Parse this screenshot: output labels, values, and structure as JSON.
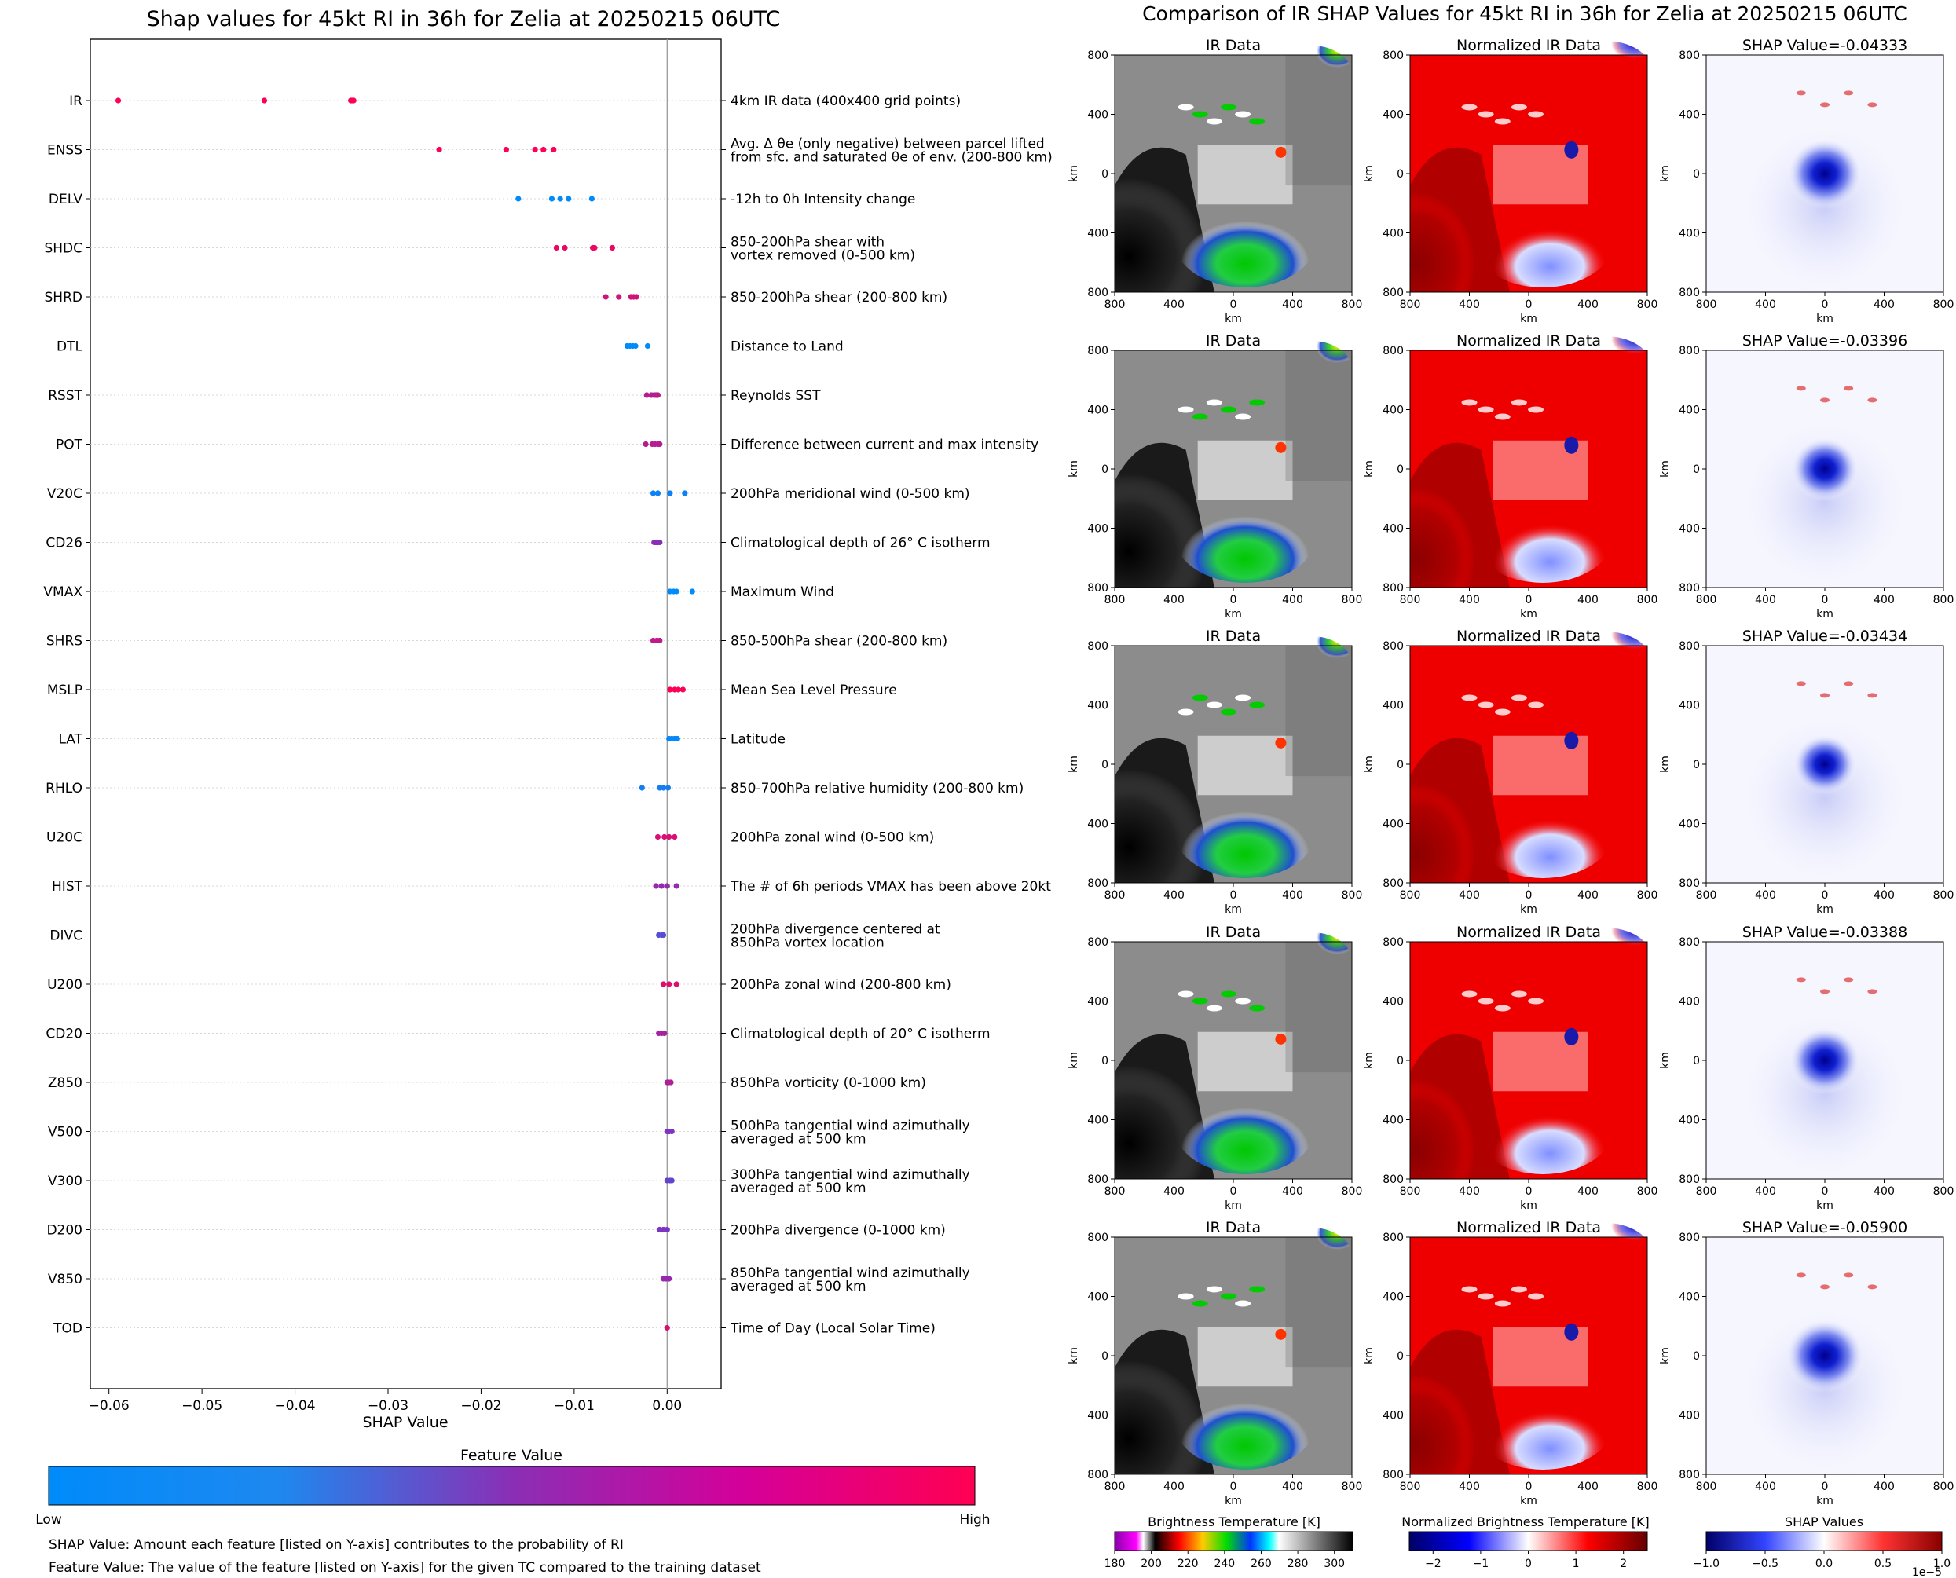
{
  "left_title": "Shap values for 45kt RI in 36h for Zelia at 20250215 06UTC",
  "right_title": "Comparison of IR SHAP Values for 45kt RI in 36h for Zelia at 20250215 06UTC",
  "feature_value_label": "Feature Value",
  "colorbar_low": "Low",
  "colorbar_high": "High",
  "colors": {
    "low": "#008bfb",
    "mid": "#7c34c2",
    "high": "#ff0052",
    "vertical_line": "#999999"
  },
  "footnotes": [
    "SHAP Value: Amount each feature [listed on Y-axis] contributes to the probability of RI",
    "Feature Value: The value of the feature [listed on Y-axis] for the given TC compared to the training dataset"
  ],
  "chart_data": [
    {
      "type": "scatter",
      "chart": "shap-beeswarm",
      "title": "Shap values for 45kt RI in 36h for Zelia at 20250215 06UTC",
      "xlabel": "SHAP Value",
      "xlim": [
        -0.062,
        0.0058
      ],
      "xticks": [
        -0.06,
        -0.05,
        -0.04,
        -0.03,
        -0.02,
        -0.01,
        0.0
      ],
      "xtick_labels": [
        "−0.06",
        "−0.05",
        "−0.04",
        "−0.03",
        "−0.02",
        "−0.01",
        "0.00"
      ],
      "features": [
        {
          "code": "IR",
          "desc": [
            "4km IR data (400x400 grid points)"
          ],
          "color_value": 1.0,
          "points": [
            -0.059,
            -0.0433,
            -0.034,
            -0.0339,
            -0.0338,
            -0.0337
          ]
        },
        {
          "code": "ENSS",
          "desc": [
            "Avg. Δ θe (only negative) between parcel lifted",
            "from sfc. and saturated θe of env. (200-800 km)"
          ],
          "color_value": 1.0,
          "points": [
            -0.0245,
            -0.0173,
            -0.0142,
            -0.0133,
            -0.0122
          ]
        },
        {
          "code": "DELV",
          "desc": [
            "-12h to 0h Intensity change"
          ],
          "color_value": 0.0,
          "points": [
            -0.016,
            -0.0124,
            -0.0115,
            -0.0106,
            -0.0081
          ]
        },
        {
          "code": "SHDC",
          "desc": [
            "850-200hPa shear with",
            "vortex removed (0-500 km)"
          ],
          "color_value": 0.92,
          "points": [
            -0.0119,
            -0.011,
            -0.008,
            -0.0078,
            -0.0059
          ]
        },
        {
          "code": "SHRD",
          "desc": [
            "850-200hPa shear (200-800 km)"
          ],
          "color_value": 0.82,
          "points": [
            -0.0066,
            -0.0052,
            -0.0039,
            -0.0036,
            -0.0033
          ]
        },
        {
          "code": "DTL",
          "desc": [
            "Distance to Land"
          ],
          "color_value": 0.0,
          "points": [
            -0.0043,
            -0.004,
            -0.0037,
            -0.0034,
            -0.0021
          ]
        },
        {
          "code": "RSST",
          "desc": [
            "Reynolds SST"
          ],
          "color_value": 0.72,
          "points": [
            -0.0022,
            -0.0017,
            -0.0014,
            -0.0012,
            -0.001
          ]
        },
        {
          "code": "POT",
          "desc": [
            "Difference between current and max intensity"
          ],
          "color_value": 0.72,
          "points": [
            -0.0023,
            -0.0016,
            -0.0013,
            -0.001,
            -0.0008
          ]
        },
        {
          "code": "V20C",
          "desc": [
            "200hPa meridional wind (0-500 km)"
          ],
          "color_value": 0.05,
          "points": [
            -0.0015,
            -0.001,
            0.0003,
            0.0019
          ]
        },
        {
          "code": "CD26",
          "desc": [
            "Climatological depth of 26° C isotherm"
          ],
          "color_value": 0.55,
          "points": [
            -0.0014,
            -0.0012,
            -0.001,
            -0.0008
          ]
        },
        {
          "code": "VMAX",
          "desc": [
            "Maximum Wind"
          ],
          "color_value": 0.0,
          "points": [
            0.0003,
            0.0007,
            0.001,
            0.0027
          ]
        },
        {
          "code": "SHRS",
          "desc": [
            "850-500hPa shear (200-800 km)"
          ],
          "color_value": 0.75,
          "points": [
            -0.0015,
            -0.0011,
            -0.0008
          ]
        },
        {
          "code": "MSLP",
          "desc": [
            "Mean Sea Level Pressure"
          ],
          "color_value": 0.98,
          "points": [
            0.0003,
            0.0008,
            0.0012,
            0.0017
          ]
        },
        {
          "code": "LAT",
          "desc": [
            "Latitude"
          ],
          "color_value": 0.02,
          "points": [
            0.0002,
            0.0005,
            0.0008,
            0.0011
          ]
        },
        {
          "code": "RHLO",
          "desc": [
            "850-700hPa relative humidity (200-800 km)"
          ],
          "color_value": 0.08,
          "points": [
            -0.0027,
            -0.0008,
            -0.0004,
            0.0001
          ]
        },
        {
          "code": "U20C",
          "desc": [
            "200hPa zonal wind (0-500 km)"
          ],
          "color_value": 0.85,
          "points": [
            -0.001,
            -0.0003,
            0.0002,
            0.0008
          ]
        },
        {
          "code": "HIST",
          "desc": [
            "The # of 6h periods VMAX has been above 20kt"
          ],
          "color_value": 0.6,
          "points": [
            -0.0012,
            -0.0006,
            0.0,
            0.001
          ]
        },
        {
          "code": "DIVC",
          "desc": [
            "200hPa divergence centered at",
            "850hPa vortex location"
          ],
          "color_value": 0.35,
          "points": [
            -0.0009,
            -0.0006,
            -0.0004
          ]
        },
        {
          "code": "U200",
          "desc": [
            "200hPa zonal wind (200-800 km)"
          ],
          "color_value": 0.88,
          "points": [
            -0.0004,
            0.0002,
            0.001
          ]
        },
        {
          "code": "CD20",
          "desc": [
            "Climatological depth of 20° C isotherm"
          ],
          "color_value": 0.65,
          "points": [
            -0.0009,
            -0.0006,
            -0.0003
          ]
        },
        {
          "code": "Z850",
          "desc": [
            "850hPa vorticity (0-1000 km)"
          ],
          "color_value": 0.7,
          "points": [
            0.0,
            0.0002,
            0.0004
          ]
        },
        {
          "code": "V500",
          "desc": [
            "500hPa tangential wind azimuthally",
            "averaged at 500 km"
          ],
          "color_value": 0.5,
          "points": [
            0.0,
            0.0002,
            0.0005
          ]
        },
        {
          "code": "V300",
          "desc": [
            "300hPa tangential wind azimuthally",
            "averaged at 500 km"
          ],
          "color_value": 0.4,
          "points": [
            0.0,
            0.0003,
            0.0005
          ]
        },
        {
          "code": "D200",
          "desc": [
            "200hPa divergence (0-1000 km)"
          ],
          "color_value": 0.5,
          "points": [
            -0.0008,
            -0.0004,
            0.0
          ]
        },
        {
          "code": "V850",
          "desc": [
            "850hPa tangential wind azimuthally",
            "averaged at 500 km"
          ],
          "color_value": 0.6,
          "points": [
            -0.0004,
            -0.0001,
            0.0002
          ]
        },
        {
          "code": "TOD",
          "desc": [
            "Time of Day (Local Solar Time)"
          ],
          "color_value": 0.85,
          "points": [
            0.0
          ]
        }
      ]
    },
    {
      "type": "heatmap",
      "chart": "ir-panel-grid",
      "column_titles": [
        "IR Data",
        "Normalized IR Data"
      ],
      "shap_titles": [
        "SHAP Value=-0.04333",
        "SHAP Value=-0.03396",
        "SHAP Value=-0.03434",
        "SHAP Value=-0.03388",
        "SHAP Value=-0.05900"
      ],
      "axis_label": "km",
      "xticks": [
        -800,
        -400,
        0,
        400,
        800
      ],
      "tick_labels": [
        "800",
        "400",
        "0",
        "400",
        "800"
      ],
      "colorbars": [
        {
          "label": "Brightness Temperature [K]",
          "ticks": [
            "180",
            "200",
            "220",
            "240",
            "260",
            "280",
            "300"
          ],
          "range": [
            180,
            310
          ]
        },
        {
          "label": "Normalized Brightness Temperature [K]",
          "ticks": [
            "−2",
            "−1",
            "0",
            "1",
            "2"
          ],
          "range": [
            -2.5,
            2.5
          ]
        },
        {
          "label": "SHAP Values",
          "ticks": [
            "−1.0",
            "−0.5",
            "0.0",
            "0.5",
            "1.0"
          ],
          "range": [
            -1.0,
            1.0
          ],
          "scale_note": "1e−5"
        }
      ]
    }
  ]
}
